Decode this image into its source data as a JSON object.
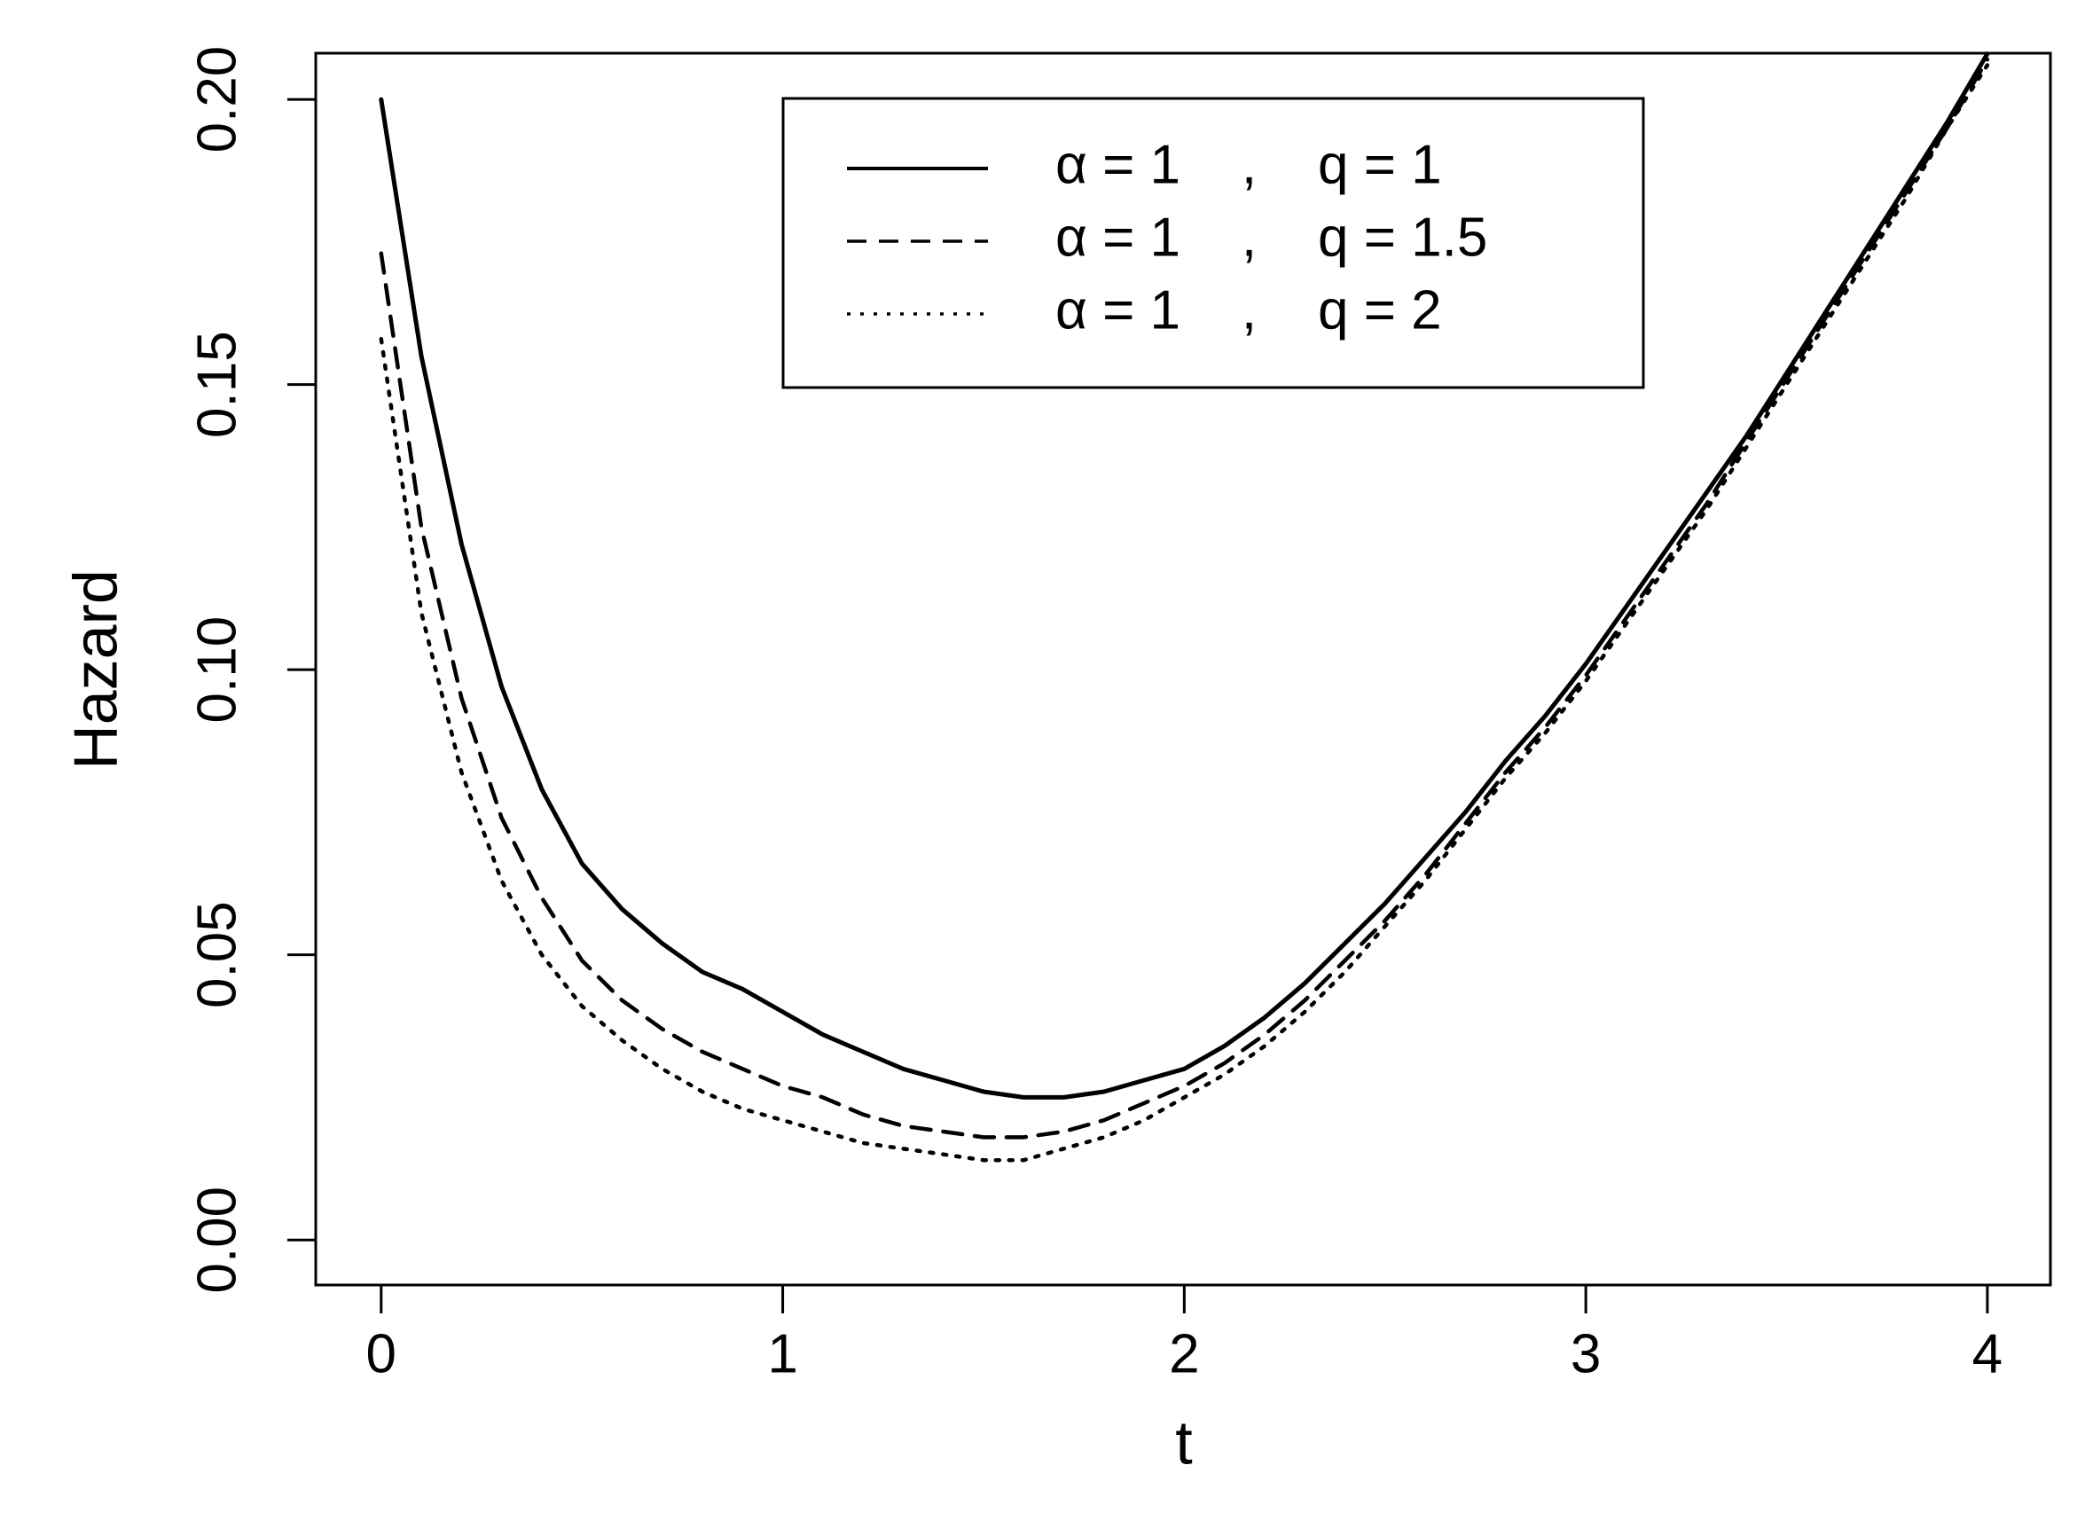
{
  "chart_data": {
    "type": "line",
    "x_label": "t",
    "y_label": "Hazard",
    "x": [
      0,
      0.1,
      0.2,
      0.3,
      0.4,
      0.5,
      0.6,
      0.7,
      0.8,
      0.9,
      1.0,
      1.1,
      1.2,
      1.3,
      1.4,
      1.5,
      1.6,
      1.7,
      1.8,
      1.9,
      2.0,
      2.1,
      2.2,
      2.3,
      2.4,
      2.5,
      2.6,
      2.7,
      2.8,
      2.9,
      3.0,
      3.1,
      3.2,
      3.3,
      3.4,
      3.5,
      3.6,
      3.7,
      3.8,
      3.9,
      4.0
    ],
    "series": [
      {
        "name": "α = 1    ,    q = 1",
        "color": "#000000",
        "linestyle": "solid",
        "values": [
          0.2,
          0.155,
          0.122,
          0.097,
          0.079,
          0.066,
          0.058,
          0.052,
          0.047,
          0.044,
          0.04,
          0.036,
          0.033,
          0.03,
          0.028,
          0.026,
          0.025,
          0.025,
          0.026,
          0.028,
          0.03,
          0.034,
          0.039,
          0.045,
          0.052,
          0.059,
          0.067,
          0.075,
          0.084,
          0.092,
          0.101,
          0.111,
          0.121,
          0.131,
          0.141,
          0.152,
          0.163,
          0.174,
          0.185,
          0.196,
          0.208
        ]
      },
      {
        "name": "α = 1    ,    q = 1.5",
        "color": "#000000",
        "linestyle": "dashed",
        "values": [
          0.173,
          0.125,
          0.095,
          0.074,
          0.06,
          0.049,
          0.042,
          0.037,
          0.033,
          0.03,
          0.027,
          0.025,
          0.022,
          0.02,
          0.019,
          0.018,
          0.018,
          0.019,
          0.021,
          0.024,
          0.027,
          0.031,
          0.036,
          0.042,
          0.049,
          0.056,
          0.064,
          0.073,
          0.082,
          0.09,
          0.099,
          0.109,
          0.119,
          0.129,
          0.14,
          0.151,
          0.162,
          0.173,
          0.184,
          0.195,
          0.207
        ]
      },
      {
        "name": "α = 1    ,    q = 2",
        "color": "#000000",
        "linestyle": "dotted",
        "values": [
          0.158,
          0.11,
          0.082,
          0.063,
          0.05,
          0.041,
          0.035,
          0.03,
          0.026,
          0.023,
          0.021,
          0.019,
          0.017,
          0.016,
          0.015,
          0.014,
          0.014,
          0.016,
          0.018,
          0.021,
          0.025,
          0.029,
          0.034,
          0.04,
          0.047,
          0.055,
          0.063,
          0.072,
          0.081,
          0.089,
          0.098,
          0.108,
          0.118,
          0.128,
          0.139,
          0.15,
          0.161,
          0.172,
          0.183,
          0.195,
          0.206
        ]
      }
    ],
    "xlim": [
      -0.163,
      4.157
    ],
    "xticks": [
      0,
      1,
      2,
      3,
      4
    ],
    "ylim": [
      -0.0079,
      0.2081
    ],
    "yticks": [
      {
        "value": 0,
        "label": "0.00"
      },
      {
        "value": 0.05,
        "label": "0.05"
      },
      {
        "value": 0.1,
        "label": "0.10"
      },
      {
        "value": 0.15,
        "label": "0.15"
      },
      {
        "value": 0.2,
        "label": "0.20"
      }
    ],
    "legend": "top-right",
    "grid": false
  }
}
